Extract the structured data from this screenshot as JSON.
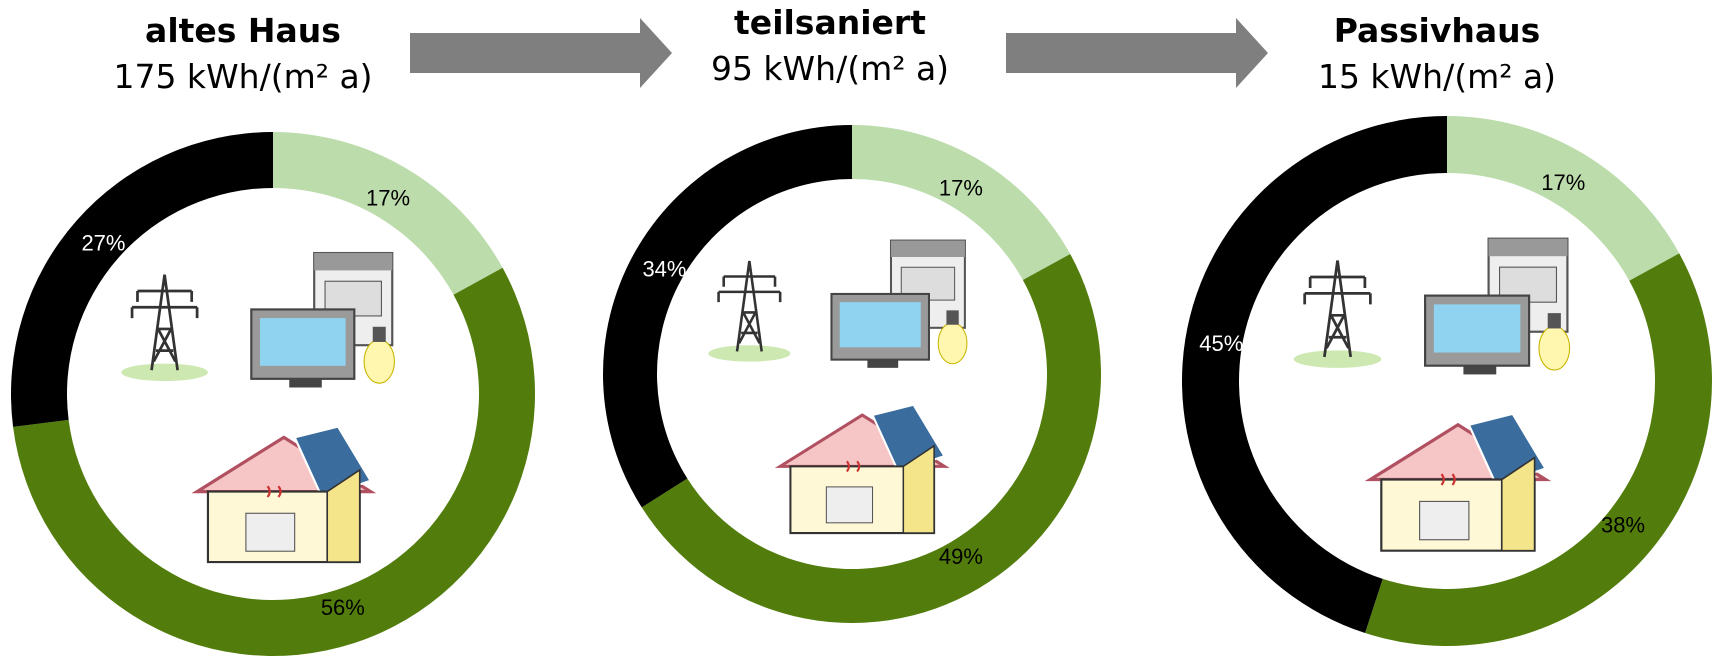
{
  "chart_data": [
    {
      "type": "pie",
      "title": "altes Haus",
      "subtitle": "175 kWh/(m² a)",
      "values": [
        17,
        56,
        27
      ],
      "value_labels": [
        "17%",
        "56%",
        "27%"
      ],
      "colors": [
        "#bcdcac",
        "#527d0c",
        "#000000"
      ]
    },
    {
      "type": "pie",
      "title": "teilsaniert",
      "subtitle": "95 kWh/(m² a)",
      "values": [
        17,
        49,
        34
      ],
      "value_labels": [
        "17%",
        "49%",
        "34%"
      ],
      "colors": [
        "#bcdcac",
        "#527d0c",
        "#000000"
      ]
    },
    {
      "type": "pie",
      "title": "Passivhaus",
      "subtitle": "15 kWh/(m² a)",
      "values": [
        17,
        38,
        45
      ],
      "value_labels": [
        "17%",
        "38%",
        "45%"
      ],
      "colors": [
        "#bcdcac",
        "#527d0c",
        "#000000"
      ]
    }
  ]
}
